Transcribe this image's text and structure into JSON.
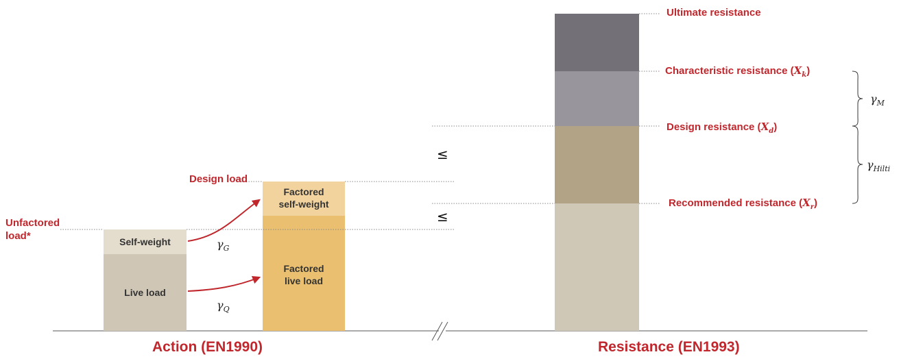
{
  "action": {
    "unfactored_load_label": "Unfactored\nload*",
    "design_load_label": "Design load",
    "self_weight": "Self-weight",
    "live_load": "Live load",
    "factored_self_weight": "Factored\nself-weight",
    "factored_live_load": "Factored\nlive load",
    "gamma_G": "γ",
    "gamma_G_sub": "G",
    "gamma_Q": "γ",
    "gamma_Q_sub": "Q",
    "title": "Action (EN1990)"
  },
  "comparison": {
    "leq_upper": "≤",
    "leq_lower": "≤"
  },
  "resistance": {
    "ultimate": "Ultimate resistance",
    "characteristic_prefix": "Characteristic resistance (",
    "characteristic_var": "X",
    "characteristic_sub": "k",
    "design_prefix": "Design resistance (",
    "design_var": "X",
    "design_sub": "d",
    "recommended_prefix": "Recommended resistance (",
    "recommended_var": "X",
    "recommended_sub": "r",
    "close_paren": ")",
    "gamma_M": "γ",
    "gamma_M_sub": "M",
    "gamma_Hilti": "γ",
    "gamma_Hilti_sub": "Hilti",
    "title": "Resistance (EN1993)"
  },
  "colors": {
    "accent_red": "#c0272d",
    "self_weight": "#e4dccd",
    "live_load": "#cfc6b5",
    "factored_self_weight": "#f2d39e",
    "factored_live_load": "#eac070",
    "ultimate": "#737177",
    "characteristic": "#99959d",
    "design": "#b2a387",
    "recommended": "#d0c8b6"
  }
}
